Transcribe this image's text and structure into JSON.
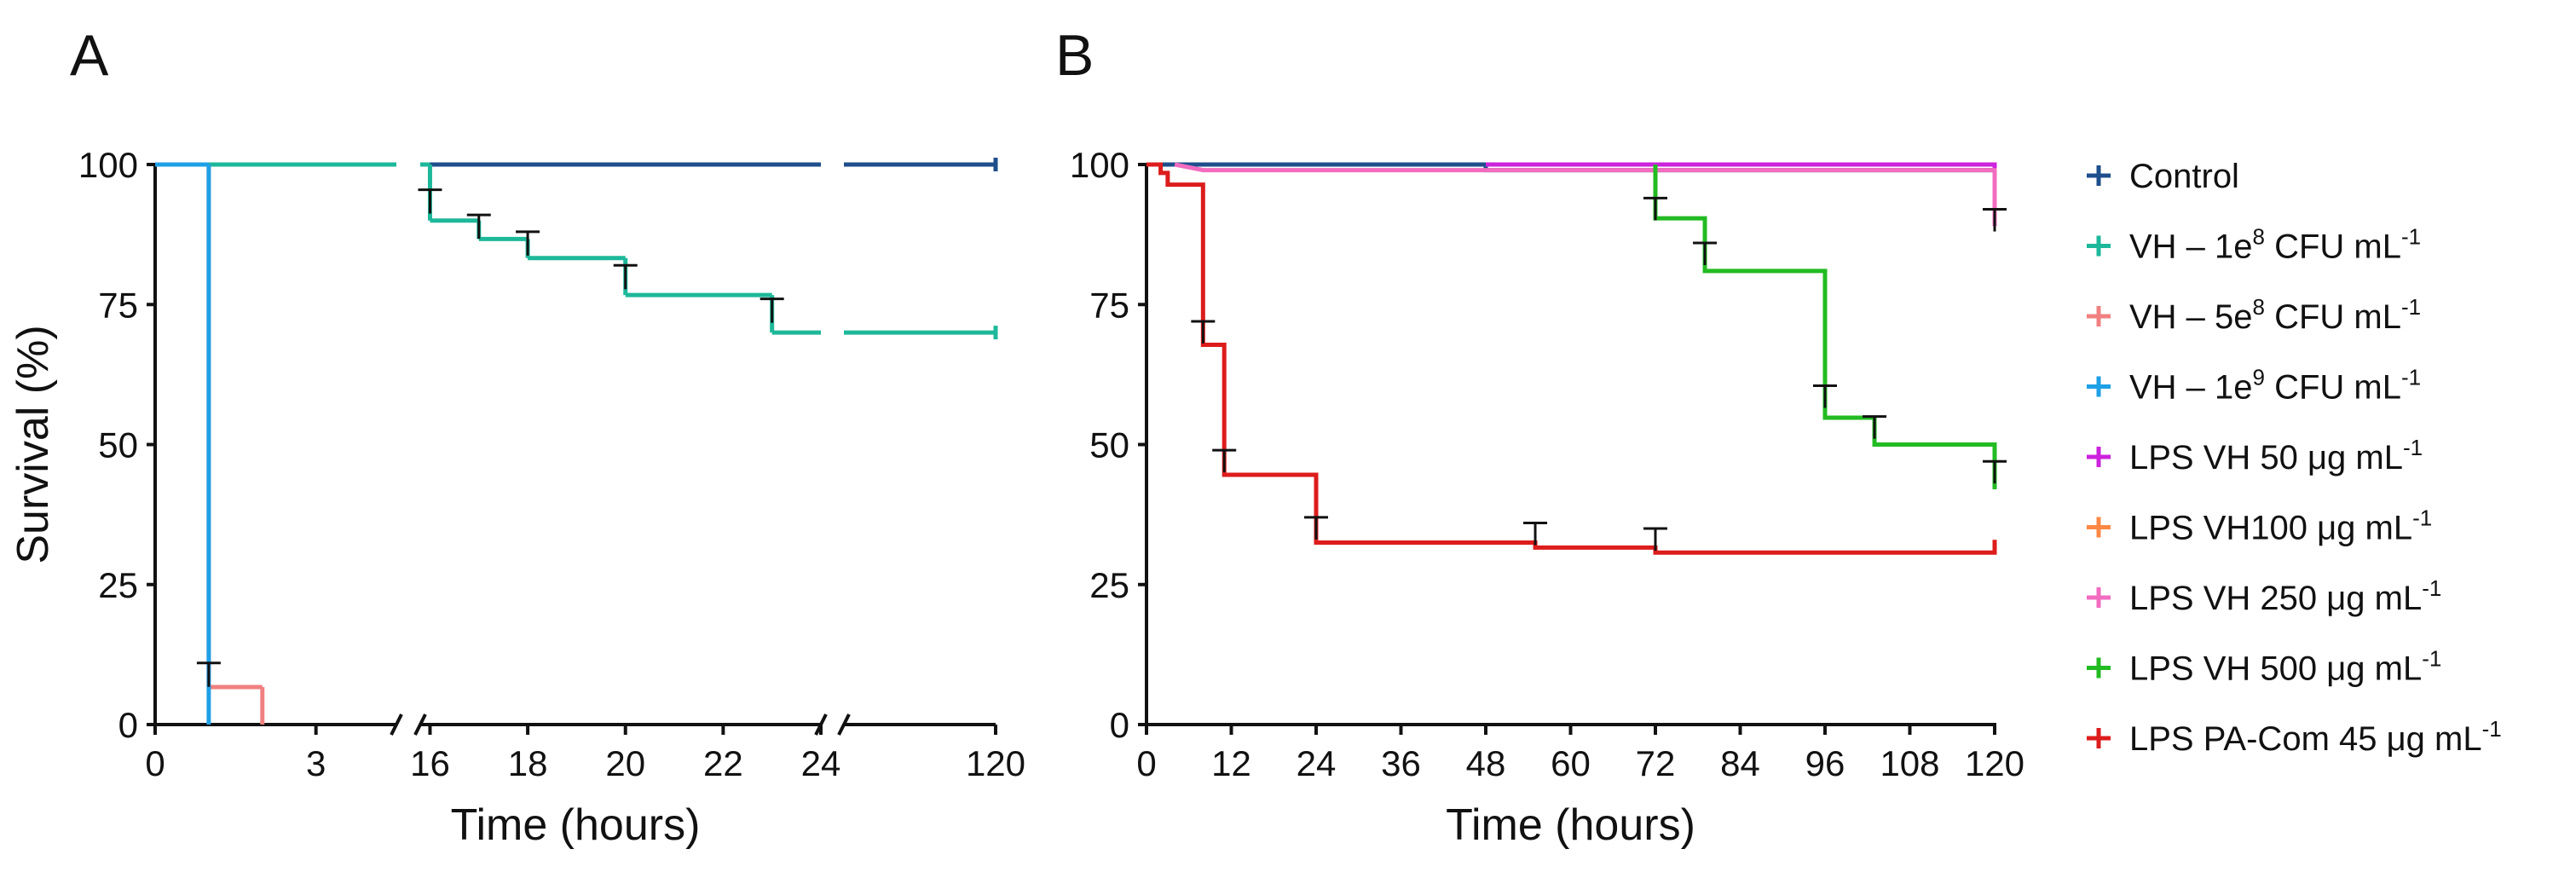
{
  "chart_data": [
    {
      "type": "line",
      "subtype": "kaplan-meier",
      "panel_label": "A",
      "xlabel": "Time (hours)",
      "ylabel": "Survival (%)",
      "ylim": [
        0,
        100
      ],
      "yticks": [
        0,
        25,
        50,
        75,
        100
      ],
      "x_axis_segments": [
        {
          "range": [
            0,
            4.5
          ],
          "ticks": [
            "0",
            "3"
          ],
          "tick_values": [
            0,
            3
          ]
        },
        {
          "range": [
            15.8,
            24
          ],
          "ticks": [
            "16",
            "18",
            "20",
            "22",
            "24"
          ],
          "tick_values": [
            16,
            18,
            20,
            22,
            24
          ]
        },
        {
          "range": [
            24.5,
            120
          ],
          "ticks": [
            "120"
          ],
          "tick_values": [
            120
          ]
        }
      ],
      "series": [
        {
          "name": "Control",
          "color": "#1f4e8c",
          "steps": [
            [
              0,
              100
            ],
            [
              120,
              100
            ]
          ],
          "censored": []
        },
        {
          "name": "VH – 1e8 CFU mL-1",
          "color": "#1db89a",
          "steps": [
            [
              0,
              100
            ],
            [
              16,
              100
            ],
            [
              16,
              90
            ],
            [
              17,
              90
            ],
            [
              17,
              86.7
            ],
            [
              18,
              86.7
            ],
            [
              18,
              83.3
            ],
            [
              20,
              83.3
            ],
            [
              20,
              76.7
            ],
            [
              23,
              76.7
            ],
            [
              23,
              70
            ],
            [
              120,
              70
            ]
          ],
          "censored": [
            [
              16,
              95.5
            ],
            [
              17,
              91
            ],
            [
              18,
              88
            ],
            [
              20,
              82
            ],
            [
              23,
              76
            ]
          ]
        },
        {
          "name": "VH – 5e8 CFU mL-1",
          "color": "#f08080",
          "steps": [
            [
              0,
              100
            ],
            [
              1,
              100
            ],
            [
              1,
              6.7
            ],
            [
              2,
              6.7
            ],
            [
              2,
              0
            ]
          ],
          "censored": []
        },
        {
          "name": "VH – 1e9 CFU mL-1",
          "color": "#1ea0e6",
          "steps": [
            [
              0,
              100
            ],
            [
              1,
              100
            ],
            [
              1,
              0
            ]
          ],
          "censored": [
            [
              1,
              11
            ]
          ]
        }
      ]
    },
    {
      "type": "line",
      "subtype": "kaplan-meier",
      "panel_label": "B",
      "xlabel": "Time (hours)",
      "ylabel": "",
      "xlim": [
        0,
        120
      ],
      "xticks": [
        "0",
        "12",
        "24",
        "36",
        "48",
        "60",
        "72",
        "84",
        "96",
        "108",
        "120"
      ],
      "xtick_values": [
        0,
        12,
        24,
        36,
        48,
        60,
        72,
        84,
        96,
        108,
        120
      ],
      "ylim": [
        0,
        100
      ],
      "yticks": [
        "0",
        "25",
        "50",
        "75",
        "100"
      ],
      "ytick_values": [
        0,
        25,
        50,
        75,
        100
      ],
      "series": [
        {
          "name": "Control",
          "color": "#1f4e8c",
          "steps": [
            [
              0,
              100
            ],
            [
              48,
              100
            ],
            [
              48,
              99
            ],
            [
              120,
              99
            ]
          ],
          "censored": []
        },
        {
          "name": "VH – 1e8 CFU mL-1",
          "color": "#1db89a",
          "steps": [],
          "censored": []
        },
        {
          "name": "VH – 5e8 CFU mL-1",
          "color": "#f08080",
          "steps": [],
          "censored": []
        },
        {
          "name": "VH – 1e9 CFU mL-1",
          "color": "#1ea0e6",
          "steps": [],
          "censored": []
        },
        {
          "name": "LPS VH 50 μg mL-1",
          "color": "#cc22dd",
          "steps": [
            [
              48,
              100
            ],
            [
              120,
              100
            ],
            [
              120,
              98
            ]
          ],
          "censored": []
        },
        {
          "name": "LPS VH100 μg mL-1",
          "color": "#ff8844",
          "steps": [],
          "censored": []
        },
        {
          "name": "LPS VH 250 μg mL-1",
          "color": "#f26cc0",
          "steps": [
            [
              4,
              100
            ],
            [
              8,
              99
            ],
            [
              120,
              99
            ],
            [
              120,
              89
            ]
          ],
          "censored": [
            [
              120,
              92
            ]
          ]
        },
        {
          "name": "LPS VH 500 μg mL-1",
          "color": "#22bb22",
          "steps": [
            [
              72,
              100
            ],
            [
              72,
              90.4
            ],
            [
              79,
              90.4
            ],
            [
              79,
              81
            ],
            [
              96,
              81
            ],
            [
              96,
              54.8
            ],
            [
              103,
              54.8
            ],
            [
              103,
              50
            ],
            [
              120,
              50
            ],
            [
              120,
              42
            ]
          ],
          "censored": [
            [
              72,
              94
            ],
            [
              79,
              86
            ],
            [
              96,
              60.5
            ],
            [
              103,
              55
            ],
            [
              120,
              47
            ]
          ]
        },
        {
          "name": "LPS PA-Com 45 μg mL-1",
          "color": "#dd1c1c",
          "steps": [
            [
              0,
              100
            ],
            [
              2,
              100
            ],
            [
              2,
              98.5
            ],
            [
              3,
              98.5
            ],
            [
              3,
              96.4
            ],
            [
              8,
              96.4
            ],
            [
              8,
              67.8
            ],
            [
              11,
              67.8
            ],
            [
              11,
              44.6
            ],
            [
              24,
              44.6
            ],
            [
              24,
              32.5
            ],
            [
              55,
              32.5
            ],
            [
              55,
              31.6
            ],
            [
              72,
              31.6
            ],
            [
              72,
              30.7
            ],
            [
              120,
              30.7
            ],
            [
              120,
              33
            ]
          ],
          "censored": [
            [
              8,
              72
            ],
            [
              11,
              49
            ],
            [
              24,
              37
            ],
            [
              55,
              36
            ],
            [
              72,
              35
            ]
          ]
        }
      ]
    }
  ],
  "legend": [
    {
      "key": "control",
      "base": "Control",
      "sup": "",
      "tail": "",
      "color": "#1f4e8c"
    },
    {
      "key": "vh1e8",
      "base": "VH – 1e",
      "sup": "8",
      "tail": " CFU mL",
      "sup2": "-1",
      "color": "#1db89a"
    },
    {
      "key": "vh5e8",
      "base": "VH – 5e",
      "sup": "8",
      "tail": " CFU mL",
      "sup2": "-1",
      "color": "#f08080"
    },
    {
      "key": "vh1e9",
      "base": "VH – 1e",
      "sup": "9",
      "tail": " CFU mL",
      "sup2": "-1",
      "color": "#1ea0e6"
    },
    {
      "key": "lps50",
      "base": "LPS VH 50 μg mL",
      "sup": "-1",
      "tail": "",
      "color": "#cc22dd"
    },
    {
      "key": "lps100",
      "base": "LPS VH100 μg mL",
      "sup": "-1",
      "tail": "",
      "color": "#ff8844"
    },
    {
      "key": "lps250",
      "base": "LPS VH 250 μg mL",
      "sup": "-1",
      "tail": "",
      "color": "#f26cc0"
    },
    {
      "key": "lps500",
      "base": "LPS VH 500 μg mL",
      "sup": "-1",
      "tail": "",
      "color": "#22bb22"
    },
    {
      "key": "pacom",
      "base": "LPS PA-Com 45 μg mL",
      "sup": "-1",
      "tail": "",
      "color": "#dd1c1c"
    }
  ]
}
